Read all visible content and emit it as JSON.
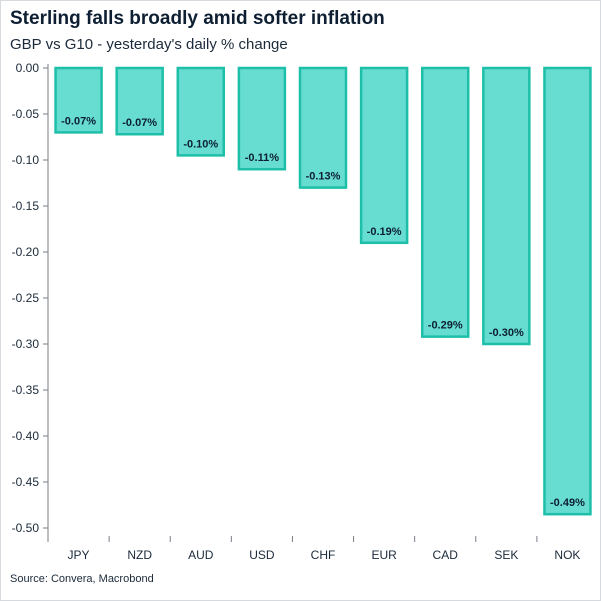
{
  "title": "Sterling falls broadly amid softer inflation",
  "subtitle": "GBP vs G10 - yesterday's daily % change",
  "source": "Source: Convera, Macrobond",
  "colors": {
    "bar_fill": "#66ddd0",
    "bar_stroke": "#1dbfa8",
    "axis": "#7a7f86",
    "text": "#1b2a3a"
  },
  "chart_data": {
    "type": "bar",
    "categories": [
      "JPY",
      "NZD",
      "AUD",
      "USD",
      "CHF",
      "EUR",
      "CAD",
      "SEK",
      "NOK"
    ],
    "values": [
      -0.07,
      -0.07,
      -0.1,
      -0.11,
      -0.13,
      -0.19,
      -0.29,
      -0.3,
      -0.49
    ],
    "data_labels": [
      "-0.07%",
      "-0.07%",
      "-0.10%",
      "-0.11%",
      "-0.13%",
      "-0.19%",
      "-0.29%",
      "-0.30%",
      "-0.49%"
    ],
    "y_ticks": [
      "0.00",
      "-0.05",
      "-0.10",
      "-0.15",
      "-0.20",
      "-0.25",
      "-0.30",
      "-0.35",
      "-0.40",
      "-0.45",
      "-0.50"
    ],
    "ylim": [
      -0.5,
      0
    ],
    "bar_ends": [
      -0.07,
      -0.072,
      -0.095,
      -0.11,
      -0.13,
      -0.19,
      -0.292,
      -0.3,
      -0.485
    ],
    "grid": false,
    "legend": "none",
    "xlabel": "",
    "ylabel": ""
  }
}
